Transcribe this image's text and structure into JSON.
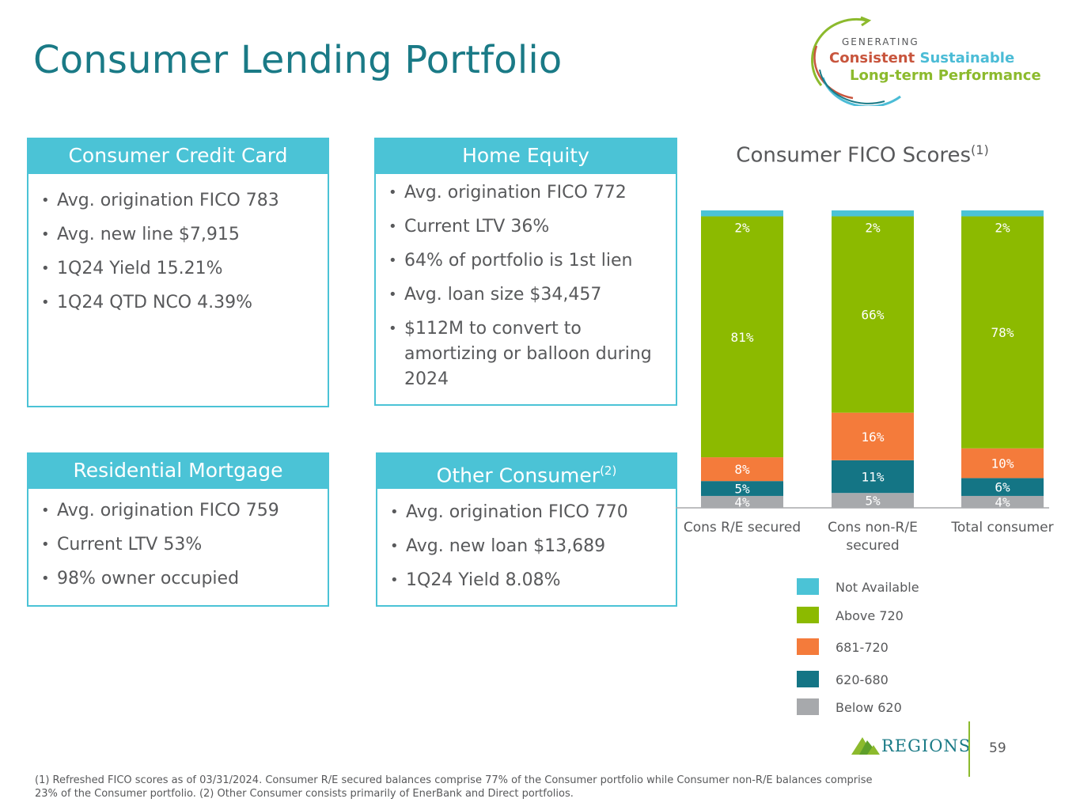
{
  "page": {
    "title": "Consumer Lending Portfolio",
    "page_number": "59"
  },
  "tagline": {
    "line0": "GENERATING",
    "word_consistent": "Consistent",
    "word_sustainable": "Sustainable",
    "line2": "Long-term Performance"
  },
  "cards": {
    "credit_card": {
      "title": "Consumer Credit Card",
      "items": [
        "Avg. origination FICO 783",
        "Avg. new line $7,915",
        "1Q24 Yield 15.21%",
        "1Q24 QTD NCO 4.39%"
      ]
    },
    "home_equity": {
      "title": "Home Equity",
      "items": [
        "Avg. origination FICO 772",
        "Current LTV 36%",
        "64% of portfolio is 1st lien",
        "Avg. loan size $34,457",
        "$112M to convert to amortizing or balloon during 2024"
      ]
    },
    "mortgage": {
      "title": "Residential Mortgage",
      "items": [
        "Avg. origination FICO 759",
        "Current LTV 53%",
        "98% owner occupied"
      ]
    },
    "other": {
      "title": "Other Consumer",
      "title_sup": "(2)",
      "items": [
        "Avg. origination FICO 770",
        "Avg. new loan $13,689",
        "1Q24 Yield 8.08%"
      ]
    }
  },
  "chart_data": {
    "type": "bar",
    "stacked": true,
    "title": "Consumer FICO Scores",
    "title_sup": "(1)",
    "categories": [
      "Cons R/E secured",
      "Cons non-R/E secured",
      "Total consumer"
    ],
    "ylim": [
      0,
      100
    ],
    "legend_position": "bottom",
    "series": [
      {
        "name": "Below 620",
        "values": [
          4,
          5,
          4
        ],
        "labels": [
          "4%",
          "5%",
          "4%"
        ],
        "color": "#a7a9ac"
      },
      {
        "name": "620-680",
        "values": [
          5,
          11,
          6
        ],
        "labels": [
          "5%",
          "11%",
          "6%"
        ],
        "color": "#147585"
      },
      {
        "name": "681-720",
        "values": [
          8,
          16,
          10
        ],
        "labels": [
          "8%",
          "16%",
          "10%"
        ],
        "color": "#f47b3b"
      },
      {
        "name": "Above 720",
        "values": [
          81,
          66,
          78
        ],
        "labels": [
          "81%",
          "66%",
          "78%"
        ],
        "color": "#8cba00"
      },
      {
        "name": "Not Available",
        "values": [
          2,
          2,
          2
        ],
        "labels": [
          "2%",
          "2%",
          "2%"
        ],
        "color": "#4bc3d6"
      }
    ]
  },
  "footer": {
    "logo_text": "REGIONS",
    "footnote": "(1) Refreshed FICO scores as of 03/31/2024. Consumer R/E secured balances comprise 77% of the Consumer portfolio while Consumer non-R/E balances comprise 23% of the Consumer portfolio. (2) Other Consumer consists primarily of EnerBank and Direct portfolios."
  }
}
